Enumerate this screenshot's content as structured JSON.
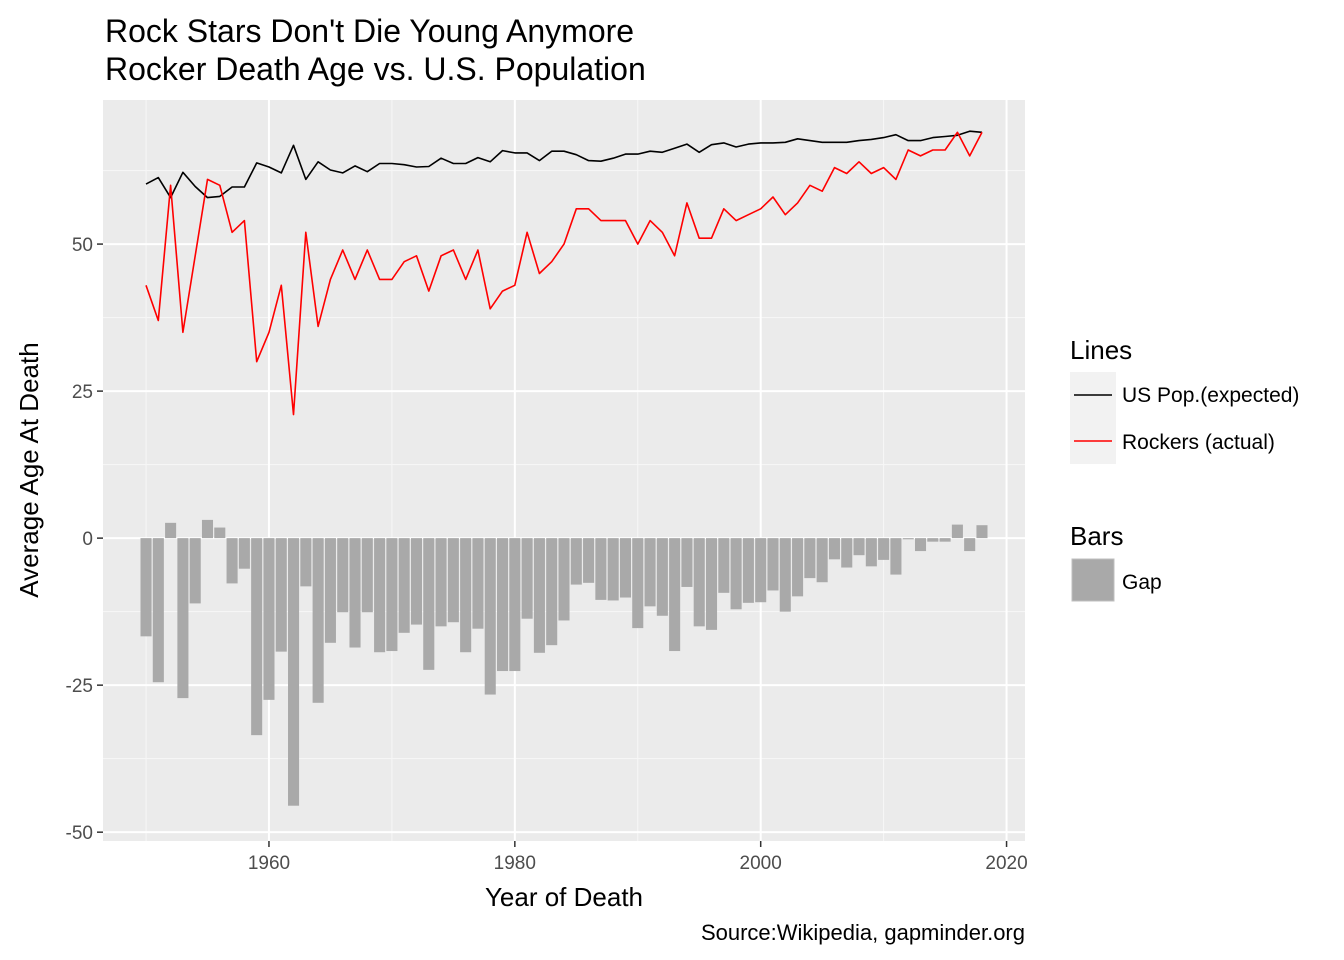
{
  "chart_data": {
    "type": "bar+line",
    "title": "Rock Stars Don't Die Young Anymore",
    "subtitle": "Rocker Death Age vs. U.S. Population",
    "xlabel": "Year of Death",
    "ylabel": "Average Age At Death",
    "caption": "Source:Wikipedia, gapminder.org",
    "xlim": [
      1946.5,
      2021.5
    ],
    "ylim": [
      -51.5,
      74.5
    ],
    "x_ticks": [
      1960,
      1980,
      2000,
      2020
    ],
    "y_ticks": [
      -50,
      -25,
      0,
      25,
      50
    ],
    "grid": true,
    "legend_position": "right",
    "legend": {
      "lines_title": "Lines",
      "bars_title": "Bars",
      "items": [
        {
          "label": "US Pop.(expected)",
          "color": "#000000",
          "kind": "line"
        },
        {
          "label": "Rockers (actual)",
          "color": "#ff0000",
          "kind": "line"
        },
        {
          "label": "Gap",
          "color": "#a9a9a9",
          "kind": "bar"
        }
      ]
    },
    "x": [
      1950,
      1951,
      1952,
      1953,
      1954,
      1955,
      1956,
      1957,
      1958,
      1959,
      1960,
      1961,
      1962,
      1963,
      1964,
      1965,
      1966,
      1967,
      1968,
      1969,
      1970,
      1971,
      1972,
      1973,
      1974,
      1975,
      1976,
      1977,
      1978,
      1979,
      1980,
      1981,
      1982,
      1983,
      1984,
      1985,
      1986,
      1987,
      1988,
      1989,
      1990,
      1991,
      1992,
      1993,
      1994,
      1995,
      1996,
      1997,
      1998,
      1999,
      2000,
      2001,
      2002,
      2003,
      2004,
      2005,
      2006,
      2007,
      2008,
      2009,
      2010,
      2011,
      2012,
      2013,
      2014,
      2015,
      2016,
      2017,
      2018
    ],
    "series": [
      {
        "name": "US Pop.(expected)",
        "color": "#000000",
        "values": [
          60.2,
          61.3,
          57.9,
          62.2,
          59.8,
          57.9,
          58.1,
          59.7,
          59.7,
          63.8,
          63.1,
          62.1,
          66.8,
          61.0,
          64.0,
          62.6,
          62.1,
          63.3,
          62.3,
          63.7,
          63.7,
          63.5,
          63.1,
          63.2,
          64.6,
          63.7,
          63.7,
          64.7,
          64.0,
          65.9,
          65.5,
          65.5,
          64.2,
          65.8,
          65.8,
          65.2,
          64.2,
          64.1,
          64.6,
          65.3,
          65.3,
          65.8,
          65.6,
          66.3,
          67.0,
          65.6,
          66.9,
          67.2,
          66.5,
          67.0,
          67.2,
          67.2,
          67.3,
          67.9,
          67.6,
          67.3,
          67.3,
          67.3,
          67.6,
          67.8,
          68.1,
          68.6,
          67.6,
          67.6,
          68.1,
          68.3,
          68.5,
          69.2,
          69.0
        ]
      },
      {
        "name": "Rockers (actual)",
        "color": "#ff0000",
        "values": [
          43.0,
          37.0,
          60.0,
          35.0,
          48.0,
          61.0,
          60.0,
          52.0,
          54.0,
          30.0,
          35.0,
          43.0,
          21.0,
          52.0,
          36.0,
          44.0,
          49.0,
          44.0,
          49.0,
          44.0,
          44.0,
          47.0,
          48.0,
          42.0,
          48.0,
          49.0,
          44.0,
          49.0,
          39.0,
          42.0,
          43.0,
          52.0,
          45.0,
          47.0,
          50.0,
          56.0,
          56.0,
          54.0,
          54.0,
          54.0,
          50.0,
          54.0,
          52.0,
          48.0,
          57.0,
          51.0,
          51.0,
          56.0,
          54.0,
          55.0,
          56.0,
          58.0,
          55.0,
          57.0,
          60.0,
          59.0,
          63.0,
          62.0,
          64.0,
          62.0,
          63.0,
          61.0,
          66.0,
          65.0,
          66.0,
          66.0,
          69.0,
          65.0,
          69.0
        ]
      },
      {
        "name": "Gap",
        "color": "#a9a9a9",
        "values": [
          -16.7,
          -24.5,
          2.6,
          -27.2,
          -11.1,
          3.1,
          1.8,
          -7.7,
          -5.2,
          -33.5,
          -27.5,
          -19.3,
          -45.5,
          -8.2,
          -28.0,
          -17.8,
          -12.6,
          -18.6,
          -12.6,
          -19.4,
          -19.2,
          -16.1,
          -14.7,
          -22.4,
          -15.0,
          -14.3,
          -19.4,
          -15.4,
          -26.6,
          -22.6,
          -22.6,
          -13.7,
          -19.5,
          -18.2,
          -14.0,
          -7.9,
          -7.6,
          -10.5,
          -10.6,
          -10.1,
          -15.3,
          -11.6,
          -13.2,
          -19.2,
          -8.3,
          -15.0,
          -15.6,
          -9.3,
          -12.1,
          -11.0,
          -10.9,
          -8.9,
          -12.5,
          -9.9,
          -6.8,
          -7.5,
          -3.6,
          -5.0,
          -2.9,
          -4.8,
          -3.7,
          -6.2,
          -0.2,
          -2.2,
          -0.6,
          -0.6,
          2.3,
          -2.2,
          2.2
        ]
      }
    ]
  }
}
